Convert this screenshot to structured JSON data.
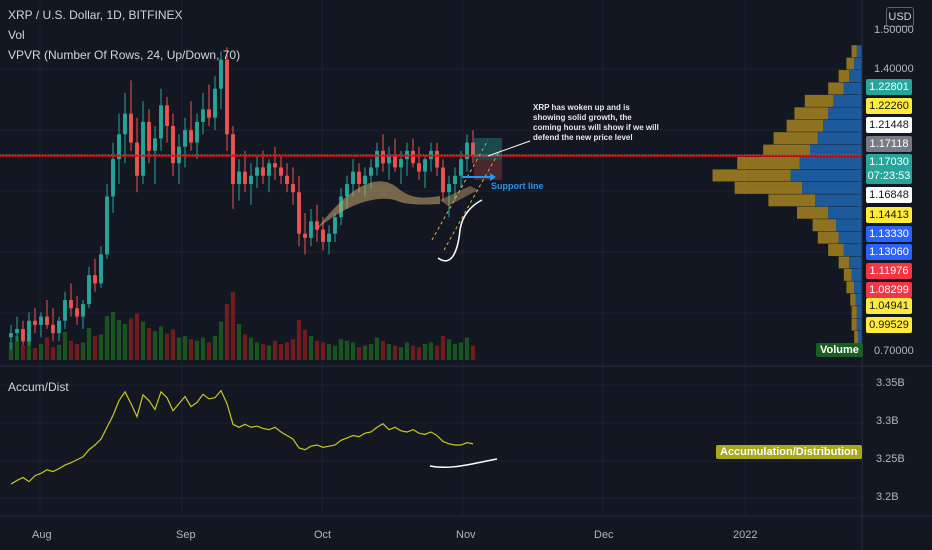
{
  "header": {
    "symbol_line": "XRP / U.S. Dollar, 1D, BITFINEX",
    "vol_label": "Vol",
    "vpvr_label": "VPVR (Number Of Rows, 24, Up/Down, 70)",
    "currency_button": "USD"
  },
  "price_axis": {
    "ticks": [
      "1.40000",
      "0.70000"
    ],
    "top_partial": "1.50000",
    "labels": [
      {
        "text": "1.22801",
        "bg": "#26a69a",
        "fg": "#ffffff"
      },
      {
        "text": "1.22260",
        "bg": "#ffeb3b",
        "fg": "#131722"
      },
      {
        "text": "1.21448",
        "bg": "#ffffff",
        "fg": "#131722"
      },
      {
        "text": "1.17118",
        "bg": "#787b86",
        "fg": "#ffffff"
      },
      {
        "text": "1.17030",
        "bg": "#26a69a",
        "fg": "#ffffff"
      },
      {
        "text": "07:23:53",
        "bg": "#26a69a",
        "fg": "#ffffff"
      },
      {
        "text": "1.16848",
        "bg": "#ffffff",
        "fg": "#131722"
      },
      {
        "text": "1.14413",
        "bg": "#ffeb3b",
        "fg": "#131722"
      },
      {
        "text": "1.13330",
        "bg": "#2962ff",
        "fg": "#ffffff"
      },
      {
        "text": "1.13060",
        "bg": "#2962ff",
        "fg": "#ffffff"
      },
      {
        "text": "1.11976",
        "bg": "#f23645",
        "fg": "#ffffff"
      },
      {
        "text": "1.08299",
        "bg": "#f23645",
        "fg": "#ffffff"
      },
      {
        "text": "1.04941",
        "bg": "#ffeb3b",
        "fg": "#131722"
      },
      {
        "text": "0.99529",
        "bg": "#ffeb3b",
        "fg": "#131722"
      }
    ],
    "volume_tag": "Volume"
  },
  "indicator": {
    "label": "Accum/Dist",
    "ticks": [
      "3.35B",
      "3.3B",
      "3.25B",
      "3.2B"
    ],
    "tag": "Accumulation/Distribution"
  },
  "time_axis": {
    "labels": [
      "Aug",
      "Sep",
      "Oct",
      "Nov",
      "Dec",
      "2022"
    ]
  },
  "annotations": {
    "note_lines": [
      "XRP has woken up and is",
      "showing solid growth, the",
      "coming hours will show if we will",
      "defend the new price level"
    ],
    "support_label": "Support line"
  },
  "colors": {
    "up": "#26a69a",
    "down": "#ef5350",
    "background": "#131722",
    "support_line": "#ff0000",
    "accdist_line": "#c8c81e",
    "vp_up": "#2172c4",
    "vp_down": "#b8921f"
  },
  "chart_data": {
    "type": "candlestick",
    "symbol": "XRP / U.S. Dollar",
    "interval": "1D",
    "exchange": "BITFINEX",
    "ylim": [
      0.68,
      1.52
    ],
    "support_level": 1.1685,
    "last_price": 1.1703,
    "ohlc": [
      [
        0.73,
        0.76,
        0.7,
        0.74
      ],
      [
        0.74,
        0.78,
        0.72,
        0.75
      ],
      [
        0.75,
        0.77,
        0.71,
        0.72
      ],
      [
        0.72,
        0.79,
        0.71,
        0.77
      ],
      [
        0.77,
        0.8,
        0.74,
        0.76
      ],
      [
        0.76,
        0.79,
        0.73,
        0.78
      ],
      [
        0.78,
        0.82,
        0.75,
        0.76
      ],
      [
        0.76,
        0.8,
        0.72,
        0.74
      ],
      [
        0.74,
        0.78,
        0.72,
        0.77
      ],
      [
        0.77,
        0.84,
        0.75,
        0.82
      ],
      [
        0.82,
        0.86,
        0.78,
        0.8
      ],
      [
        0.8,
        0.83,
        0.76,
        0.78
      ],
      [
        0.78,
        0.82,
        0.75,
        0.81
      ],
      [
        0.81,
        0.9,
        0.8,
        0.88
      ],
      [
        0.88,
        0.92,
        0.84,
        0.86
      ],
      [
        0.86,
        0.95,
        0.85,
        0.93
      ],
      [
        0.93,
        1.1,
        0.92,
        1.07
      ],
      [
        1.07,
        1.2,
        1.03,
        1.16
      ],
      [
        1.16,
        1.27,
        1.1,
        1.22
      ],
      [
        1.22,
        1.32,
        1.15,
        1.27
      ],
      [
        1.27,
        1.35,
        1.18,
        1.2
      ],
      [
        1.2,
        1.26,
        1.08,
        1.12
      ],
      [
        1.12,
        1.3,
        1.1,
        1.25
      ],
      [
        1.25,
        1.28,
        1.15,
        1.18
      ],
      [
        1.18,
        1.24,
        1.1,
        1.21
      ],
      [
        1.21,
        1.33,
        1.18,
        1.29
      ],
      [
        1.29,
        1.31,
        1.2,
        1.24
      ],
      [
        1.24,
        1.27,
        1.12,
        1.15
      ],
      [
        1.15,
        1.22,
        1.1,
        1.19
      ],
      [
        1.19,
        1.26,
        1.14,
        1.23
      ],
      [
        1.23,
        1.3,
        1.18,
        1.2
      ],
      [
        1.2,
        1.27,
        1.16,
        1.25
      ],
      [
        1.25,
        1.32,
        1.22,
        1.28
      ],
      [
        1.28,
        1.34,
        1.24,
        1.26
      ],
      [
        1.26,
        1.36,
        1.23,
        1.33
      ],
      [
        1.33,
        1.42,
        1.28,
        1.4
      ],
      [
        1.4,
        1.43,
        1.18,
        1.22
      ],
      [
        1.22,
        1.24,
        1.04,
        1.1
      ],
      [
        1.1,
        1.16,
        1.06,
        1.13
      ],
      [
        1.13,
        1.18,
        1.08,
        1.1
      ],
      [
        1.1,
        1.15,
        1.05,
        1.12
      ],
      [
        1.12,
        1.17,
        1.09,
        1.14
      ],
      [
        1.14,
        1.18,
        1.1,
        1.12
      ],
      [
        1.12,
        1.16,
        1.08,
        1.15
      ],
      [
        1.15,
        1.19,
        1.11,
        1.14
      ],
      [
        1.14,
        1.17,
        1.1,
        1.12
      ],
      [
        1.12,
        1.15,
        1.08,
        1.1
      ],
      [
        1.1,
        1.14,
        1.05,
        1.08
      ],
      [
        1.08,
        1.12,
        0.95,
        0.98
      ],
      [
        0.98,
        1.03,
        0.93,
        0.97
      ],
      [
        0.97,
        1.04,
        0.95,
        1.01
      ],
      [
        1.01,
        1.05,
        0.96,
        0.99
      ],
      [
        0.99,
        1.02,
        0.94,
        0.96
      ],
      [
        0.96,
        1.0,
        0.93,
        0.98
      ],
      [
        0.98,
        1.03,
        0.96,
        1.02
      ],
      [
        1.02,
        1.09,
        1.0,
        1.07
      ],
      [
        1.07,
        1.12,
        1.04,
        1.1
      ],
      [
        1.1,
        1.16,
        1.07,
        1.13
      ],
      [
        1.13,
        1.15,
        1.08,
        1.1
      ],
      [
        1.1,
        1.14,
        1.07,
        1.12
      ],
      [
        1.12,
        1.16,
        1.09,
        1.14
      ],
      [
        1.14,
        1.2,
        1.12,
        1.18
      ],
      [
        1.18,
        1.22,
        1.13,
        1.15
      ],
      [
        1.15,
        1.19,
        1.11,
        1.17
      ],
      [
        1.17,
        1.21,
        1.13,
        1.14
      ],
      [
        1.14,
        1.18,
        1.1,
        1.16
      ],
      [
        1.16,
        1.2,
        1.12,
        1.18
      ],
      [
        1.18,
        1.21,
        1.14,
        1.15
      ],
      [
        1.15,
        1.19,
        1.11,
        1.13
      ],
      [
        1.13,
        1.17,
        1.09,
        1.16
      ],
      [
        1.16,
        1.2,
        1.13,
        1.18
      ],
      [
        1.18,
        1.2,
        1.12,
        1.14
      ],
      [
        1.14,
        1.16,
        1.06,
        1.08
      ],
      [
        1.08,
        1.12,
        1.02,
        1.1
      ],
      [
        1.1,
        1.14,
        1.06,
        1.12
      ],
      [
        1.12,
        1.18,
        1.09,
        1.16
      ],
      [
        1.16,
        1.22,
        1.13,
        1.2
      ],
      [
        1.2,
        1.23,
        1.15,
        1.17
      ]
    ],
    "volume": [
      0.22,
      0.3,
      0.18,
      0.25,
      0.15,
      0.2,
      0.28,
      0.16,
      0.19,
      0.35,
      0.24,
      0.2,
      0.22,
      0.4,
      0.3,
      0.32,
      0.55,
      0.6,
      0.5,
      0.45,
      0.52,
      0.58,
      0.48,
      0.4,
      0.36,
      0.42,
      0.33,
      0.38,
      0.28,
      0.3,
      0.26,
      0.24,
      0.28,
      0.22,
      0.3,
      0.48,
      0.7,
      0.85,
      0.45,
      0.32,
      0.28,
      0.22,
      0.2,
      0.18,
      0.24,
      0.2,
      0.22,
      0.26,
      0.5,
      0.38,
      0.3,
      0.24,
      0.22,
      0.2,
      0.18,
      0.26,
      0.24,
      0.22,
      0.16,
      0.18,
      0.2,
      0.28,
      0.24,
      0.2,
      0.18,
      0.16,
      0.22,
      0.18,
      0.16,
      0.2,
      0.22,
      0.18,
      0.3,
      0.26,
      0.2,
      0.22,
      0.28,
      0.18
    ],
    "accum_dist": [
      3.204,
      3.21,
      3.215,
      3.208,
      3.218,
      3.222,
      3.228,
      3.225,
      3.23,
      3.236,
      3.24,
      3.245,
      3.25,
      3.262,
      3.27,
      3.28,
      3.3,
      3.32,
      3.345,
      3.36,
      3.34,
      3.318,
      3.355,
      3.345,
      3.33,
      3.36,
      3.35,
      3.328,
      3.34,
      3.352,
      3.335,
      3.342,
      3.356,
      3.348,
      3.35,
      3.362,
      3.34,
      3.305,
      3.3,
      3.305,
      3.3,
      3.302,
      3.298,
      3.296,
      3.3,
      3.292,
      3.286,
      3.28,
      3.265,
      3.262,
      3.268,
      3.27,
      3.266,
      3.268,
      3.27,
      3.278,
      3.282,
      3.286,
      3.284,
      3.29,
      3.292,
      3.3,
      3.306,
      3.296,
      3.3,
      3.294,
      3.292,
      3.296,
      3.29,
      3.288,
      3.292,
      3.286,
      3.276,
      3.272,
      3.27,
      3.27,
      3.274,
      3.272
    ],
    "accum_dist_ylim": [
      3.16,
      3.38
    ],
    "volume_profile": [
      {
        "price": 1.42,
        "up": 0.04,
        "down": 0.04
      },
      {
        "price": 1.39,
        "up": 0.06,
        "down": 0.06
      },
      {
        "price": 1.36,
        "up": 0.1,
        "down": 0.08
      },
      {
        "price": 1.33,
        "up": 0.14,
        "down": 0.12
      },
      {
        "price": 1.3,
        "up": 0.22,
        "down": 0.22
      },
      {
        "price": 1.27,
        "up": 0.26,
        "down": 0.26
      },
      {
        "price": 1.24,
        "up": 0.3,
        "down": 0.28
      },
      {
        "price": 1.21,
        "up": 0.34,
        "down": 0.34
      },
      {
        "price": 1.18,
        "up": 0.4,
        "down": 0.36
      },
      {
        "price": 1.15,
        "up": 0.48,
        "down": 0.48
      },
      {
        "price": 1.12,
        "up": 0.55,
        "down": 0.6
      },
      {
        "price": 1.09,
        "up": 0.46,
        "down": 0.52
      },
      {
        "price": 1.06,
        "up": 0.36,
        "down": 0.36
      },
      {
        "price": 1.03,
        "up": 0.26,
        "down": 0.24
      },
      {
        "price": 1.0,
        "up": 0.2,
        "down": 0.18
      },
      {
        "price": 0.97,
        "up": 0.18,
        "down": 0.16
      },
      {
        "price": 0.94,
        "up": 0.14,
        "down": 0.12
      },
      {
        "price": 0.91,
        "up": 0.1,
        "down": 0.08
      },
      {
        "price": 0.88,
        "up": 0.08,
        "down": 0.06
      },
      {
        "price": 0.85,
        "up": 0.06,
        "down": 0.06
      },
      {
        "price": 0.82,
        "up": 0.05,
        "down": 0.04
      },
      {
        "price": 0.79,
        "up": 0.04,
        "down": 0.04
      },
      {
        "price": 0.76,
        "up": 0.04,
        "down": 0.04
      },
      {
        "price": 0.73,
        "up": 0.03,
        "down": 0.03
      }
    ]
  }
}
